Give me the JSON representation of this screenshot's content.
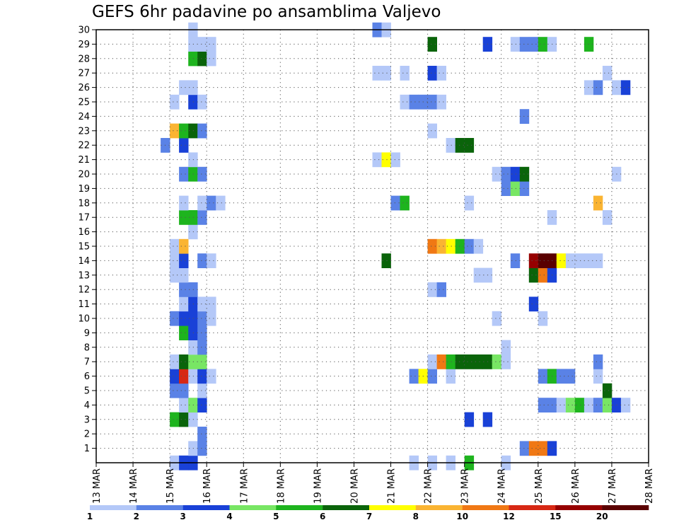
{
  "title": "GEFS 6hr padavine po ansamblima Valjevo",
  "chart_data": {
    "type": "heatmap",
    "title": "GEFS 6hr padavine po ansamblima Valjevo",
    "x_tick_labels": [
      "13 MAR",
      "14 MAR",
      "15 MAR",
      "16 MAR",
      "17 MAR",
      "18 MAR",
      "19 MAR",
      "20 MAR",
      "21 MAR",
      "22 MAR",
      "23 MAR",
      "24 MAR",
      "25 MAR",
      "26 MAR",
      "27 MAR",
      "28 MAR"
    ],
    "x_range_days": [
      13,
      28
    ],
    "y_tick_labels": [
      "1",
      "2",
      "3",
      "4",
      "5",
      "6",
      "7",
      "8",
      "9",
      "10",
      "11",
      "12",
      "13",
      "14",
      "15",
      "16",
      "17",
      "18",
      "19",
      "20",
      "21",
      "22",
      "23",
      "24",
      "25",
      "26",
      "27",
      "28",
      "29",
      "30"
    ],
    "y_range": [
      0,
      30
    ],
    "grid": true,
    "colorbar": {
      "thresholds": [
        1,
        2,
        3,
        4,
        5,
        6,
        7,
        8,
        10,
        12,
        15,
        20
      ],
      "labels": [
        "1",
        "2",
        "3",
        "4",
        "5",
        "6",
        "7",
        "8",
        "10",
        "12",
        "15",
        "20"
      ],
      "colors": [
        "#b4c8f8",
        "#5a82e6",
        "#1941d7",
        "#78e664",
        "#1eb41e",
        "#0a640a",
        "#ffff00",
        "#fab432",
        "#f07814",
        "#d72814",
        "#960000",
        "#5a0000"
      ]
    },
    "cells_format": "[member, day_start (MAR, 6h steps), color_index 0..11]",
    "cells": [
      [
        0,
        15.0,
        0
      ],
      [
        0,
        15.25,
        2
      ],
      [
        0,
        15.5,
        2
      ],
      [
        0,
        21.5,
        0
      ],
      [
        0,
        22.0,
        0
      ],
      [
        0,
        22.5,
        0
      ],
      [
        0,
        23.0,
        4
      ],
      [
        0,
        24.0,
        0
      ],
      [
        1,
        15.5,
        0
      ],
      [
        1,
        15.75,
        1
      ],
      [
        1,
        24.5,
        1
      ],
      [
        1,
        24.75,
        8
      ],
      [
        1,
        25.0,
        8
      ],
      [
        1,
        25.25,
        2
      ],
      [
        2,
        15.75,
        1
      ],
      [
        3,
        15.0,
        4
      ],
      [
        3,
        15.25,
        5
      ],
      [
        3,
        15.5,
        0
      ],
      [
        3,
        23.0,
        2
      ],
      [
        3,
        23.5,
        2
      ],
      [
        4,
        15.25,
        0
      ],
      [
        4,
        15.5,
        3
      ],
      [
        4,
        15.75,
        2
      ],
      [
        4,
        25.0,
        1
      ],
      [
        4,
        25.25,
        1
      ],
      [
        4,
        25.5,
        0
      ],
      [
        4,
        25.75,
        3
      ],
      [
        4,
        26.0,
        4
      ],
      [
        4,
        26.25,
        0
      ],
      [
        4,
        26.5,
        1
      ],
      [
        4,
        26.75,
        3
      ],
      [
        4,
        27.0,
        2
      ],
      [
        4,
        27.25,
        0
      ],
      [
        5,
        15.0,
        1
      ],
      [
        5,
        15.25,
        1
      ],
      [
        5,
        15.75,
        0
      ],
      [
        5,
        26.75,
        5
      ],
      [
        6,
        15.0,
        2
      ],
      [
        6,
        15.25,
        9
      ],
      [
        6,
        15.5,
        0
      ],
      [
        6,
        15.75,
        2
      ],
      [
        6,
        16.0,
        0
      ],
      [
        6,
        21.5,
        1
      ],
      [
        6,
        21.75,
        6
      ],
      [
        6,
        22.0,
        1
      ],
      [
        6,
        22.5,
        0
      ],
      [
        6,
        25.75,
        1
      ],
      [
        6,
        25.0,
        1
      ],
      [
        6,
        25.25,
        4
      ],
      [
        6,
        25.5,
        1
      ],
      [
        6,
        26.5,
        0
      ],
      [
        7,
        15.0,
        0
      ],
      [
        7,
        15.25,
        5
      ],
      [
        7,
        15.5,
        3
      ],
      [
        7,
        15.75,
        3
      ],
      [
        7,
        22.0,
        0
      ],
      [
        7,
        22.25,
        8
      ],
      [
        7,
        22.5,
        4
      ],
      [
        7,
        22.75,
        5
      ],
      [
        7,
        23.0,
        5
      ],
      [
        7,
        23.25,
        5
      ],
      [
        7,
        23.5,
        5
      ],
      [
        7,
        23.75,
        3
      ],
      [
        7,
        24.0,
        0
      ],
      [
        7,
        26.5,
        1
      ],
      [
        8,
        15.5,
        0
      ],
      [
        8,
        15.75,
        1
      ],
      [
        8,
        24.0,
        0
      ],
      [
        9,
        15.25,
        4
      ],
      [
        9,
        15.5,
        2
      ],
      [
        9,
        15.75,
        1
      ],
      [
        10,
        15.0,
        1
      ],
      [
        10,
        15.25,
        2
      ],
      [
        10,
        15.5,
        2
      ],
      [
        10,
        15.75,
        1
      ],
      [
        10,
        16.0,
        0
      ],
      [
        10,
        23.75,
        0
      ],
      [
        10,
        25.0,
        0
      ],
      [
        11,
        15.25,
        0
      ],
      [
        11,
        15.5,
        2
      ],
      [
        11,
        15.75,
        0
      ],
      [
        11,
        16.0,
        0
      ],
      [
        11,
        24.75,
        2
      ],
      [
        12,
        15.25,
        1
      ],
      [
        12,
        15.5,
        1
      ],
      [
        12,
        22.0,
        0
      ],
      [
        12,
        22.25,
        1
      ],
      [
        13,
        15.0,
        0
      ],
      [
        13,
        15.25,
        0
      ],
      [
        13,
        23.25,
        0
      ],
      [
        13,
        23.5,
        0
      ],
      [
        13,
        24.75,
        5
      ],
      [
        13,
        25.0,
        8
      ],
      [
        13,
        25.25,
        2
      ],
      [
        14,
        15.0,
        0
      ],
      [
        14,
        15.25,
        2
      ],
      [
        14,
        15.75,
        1
      ],
      [
        14,
        16.0,
        0
      ],
      [
        14,
        20.75,
        5
      ],
      [
        14,
        24.25,
        1
      ],
      [
        14,
        24.75,
        10
      ],
      [
        14,
        25.0,
        11
      ],
      [
        14,
        25.25,
        11
      ],
      [
        14,
        25.5,
        6
      ],
      [
        14,
        25.75,
        0
      ],
      [
        14,
        26.0,
        0
      ],
      [
        14,
        26.25,
        0
      ],
      [
        14,
        26.5,
        0
      ],
      [
        15,
        15.0,
        0
      ],
      [
        15,
        15.25,
        7
      ],
      [
        15,
        22.0,
        8
      ],
      [
        15,
        22.25,
        7
      ],
      [
        15,
        22.5,
        6
      ],
      [
        15,
        22.75,
        4
      ],
      [
        15,
        23.0,
        1
      ],
      [
        15,
        23.25,
        0
      ],
      [
        16,
        15.5,
        0
      ],
      [
        17,
        15.25,
        4
      ],
      [
        17,
        15.5,
        4
      ],
      [
        17,
        15.75,
        1
      ],
      [
        17,
        25.25,
        0
      ],
      [
        17,
        26.75,
        0
      ],
      [
        18,
        15.25,
        0
      ],
      [
        18,
        15.75,
        0
      ],
      [
        18,
        16.0,
        1
      ],
      [
        18,
        16.25,
        0
      ],
      [
        18,
        21.0,
        1
      ],
      [
        18,
        21.25,
        4
      ],
      [
        18,
        23.0,
        0
      ],
      [
        18,
        26.5,
        7
      ],
      [
        19,
        24.0,
        1
      ],
      [
        19,
        24.25,
        3
      ],
      [
        19,
        24.5,
        1
      ],
      [
        20,
        15.25,
        1
      ],
      [
        20,
        15.5,
        4
      ],
      [
        20,
        15.75,
        1
      ],
      [
        20,
        23.75,
        0
      ],
      [
        20,
        24.0,
        1
      ],
      [
        20,
        24.25,
        2
      ],
      [
        20,
        24.5,
        5
      ],
      [
        20,
        27.0,
        0
      ],
      [
        21,
        15.5,
        0
      ],
      [
        21,
        20.5,
        0
      ],
      [
        21,
        20.75,
        6
      ],
      [
        21,
        21.0,
        0
      ],
      [
        22,
        14.75,
        1
      ],
      [
        22,
        15.25,
        2
      ],
      [
        22,
        22.5,
        0
      ],
      [
        22,
        22.75,
        5
      ],
      [
        22,
        23.0,
        5
      ],
      [
        23,
        15.0,
        7
      ],
      [
        23,
        15.25,
        4
      ],
      [
        23,
        15.5,
        5
      ],
      [
        23,
        15.75,
        1
      ],
      [
        23,
        22.0,
        0
      ],
      [
        24,
        24.5,
        1
      ],
      [
        25,
        15.0,
        0
      ],
      [
        25,
        15.5,
        2
      ],
      [
        25,
        15.75,
        0
      ],
      [
        25,
        21.25,
        0
      ],
      [
        25,
        21.5,
        1
      ],
      [
        25,
        21.75,
        1
      ],
      [
        25,
        22.0,
        1
      ],
      [
        25,
        22.25,
        0
      ],
      [
        26,
        15.25,
        0
      ],
      [
        26,
        15.5,
        0
      ],
      [
        26,
        26.25,
        0
      ],
      [
        26,
        26.5,
        1
      ],
      [
        26,
        27.0,
        0
      ],
      [
        26,
        27.25,
        2
      ],
      [
        27,
        20.5,
        0
      ],
      [
        27,
        20.75,
        0
      ],
      [
        27,
        21.25,
        0
      ],
      [
        27,
        22.0,
        2
      ],
      [
        27,
        22.25,
        0
      ],
      [
        27,
        26.75,
        0
      ],
      [
        28,
        15.5,
        4
      ],
      [
        28,
        15.75,
        5
      ],
      [
        28,
        16.0,
        0
      ],
      [
        29,
        15.5,
        0
      ],
      [
        29,
        15.75,
        0
      ],
      [
        29,
        16.0,
        0
      ],
      [
        29,
        22.0,
        5
      ],
      [
        29,
        23.5,
        2
      ],
      [
        29,
        24.25,
        0
      ],
      [
        29,
        24.5,
        1
      ],
      [
        29,
        24.75,
        1
      ],
      [
        29,
        25.0,
        4
      ],
      [
        29,
        25.25,
        0
      ],
      [
        29,
        26.25,
        4
      ],
      [
        30,
        15.5,
        0
      ],
      [
        30,
        20.5,
        1
      ],
      [
        30,
        20.75,
        0
      ]
    ]
  }
}
